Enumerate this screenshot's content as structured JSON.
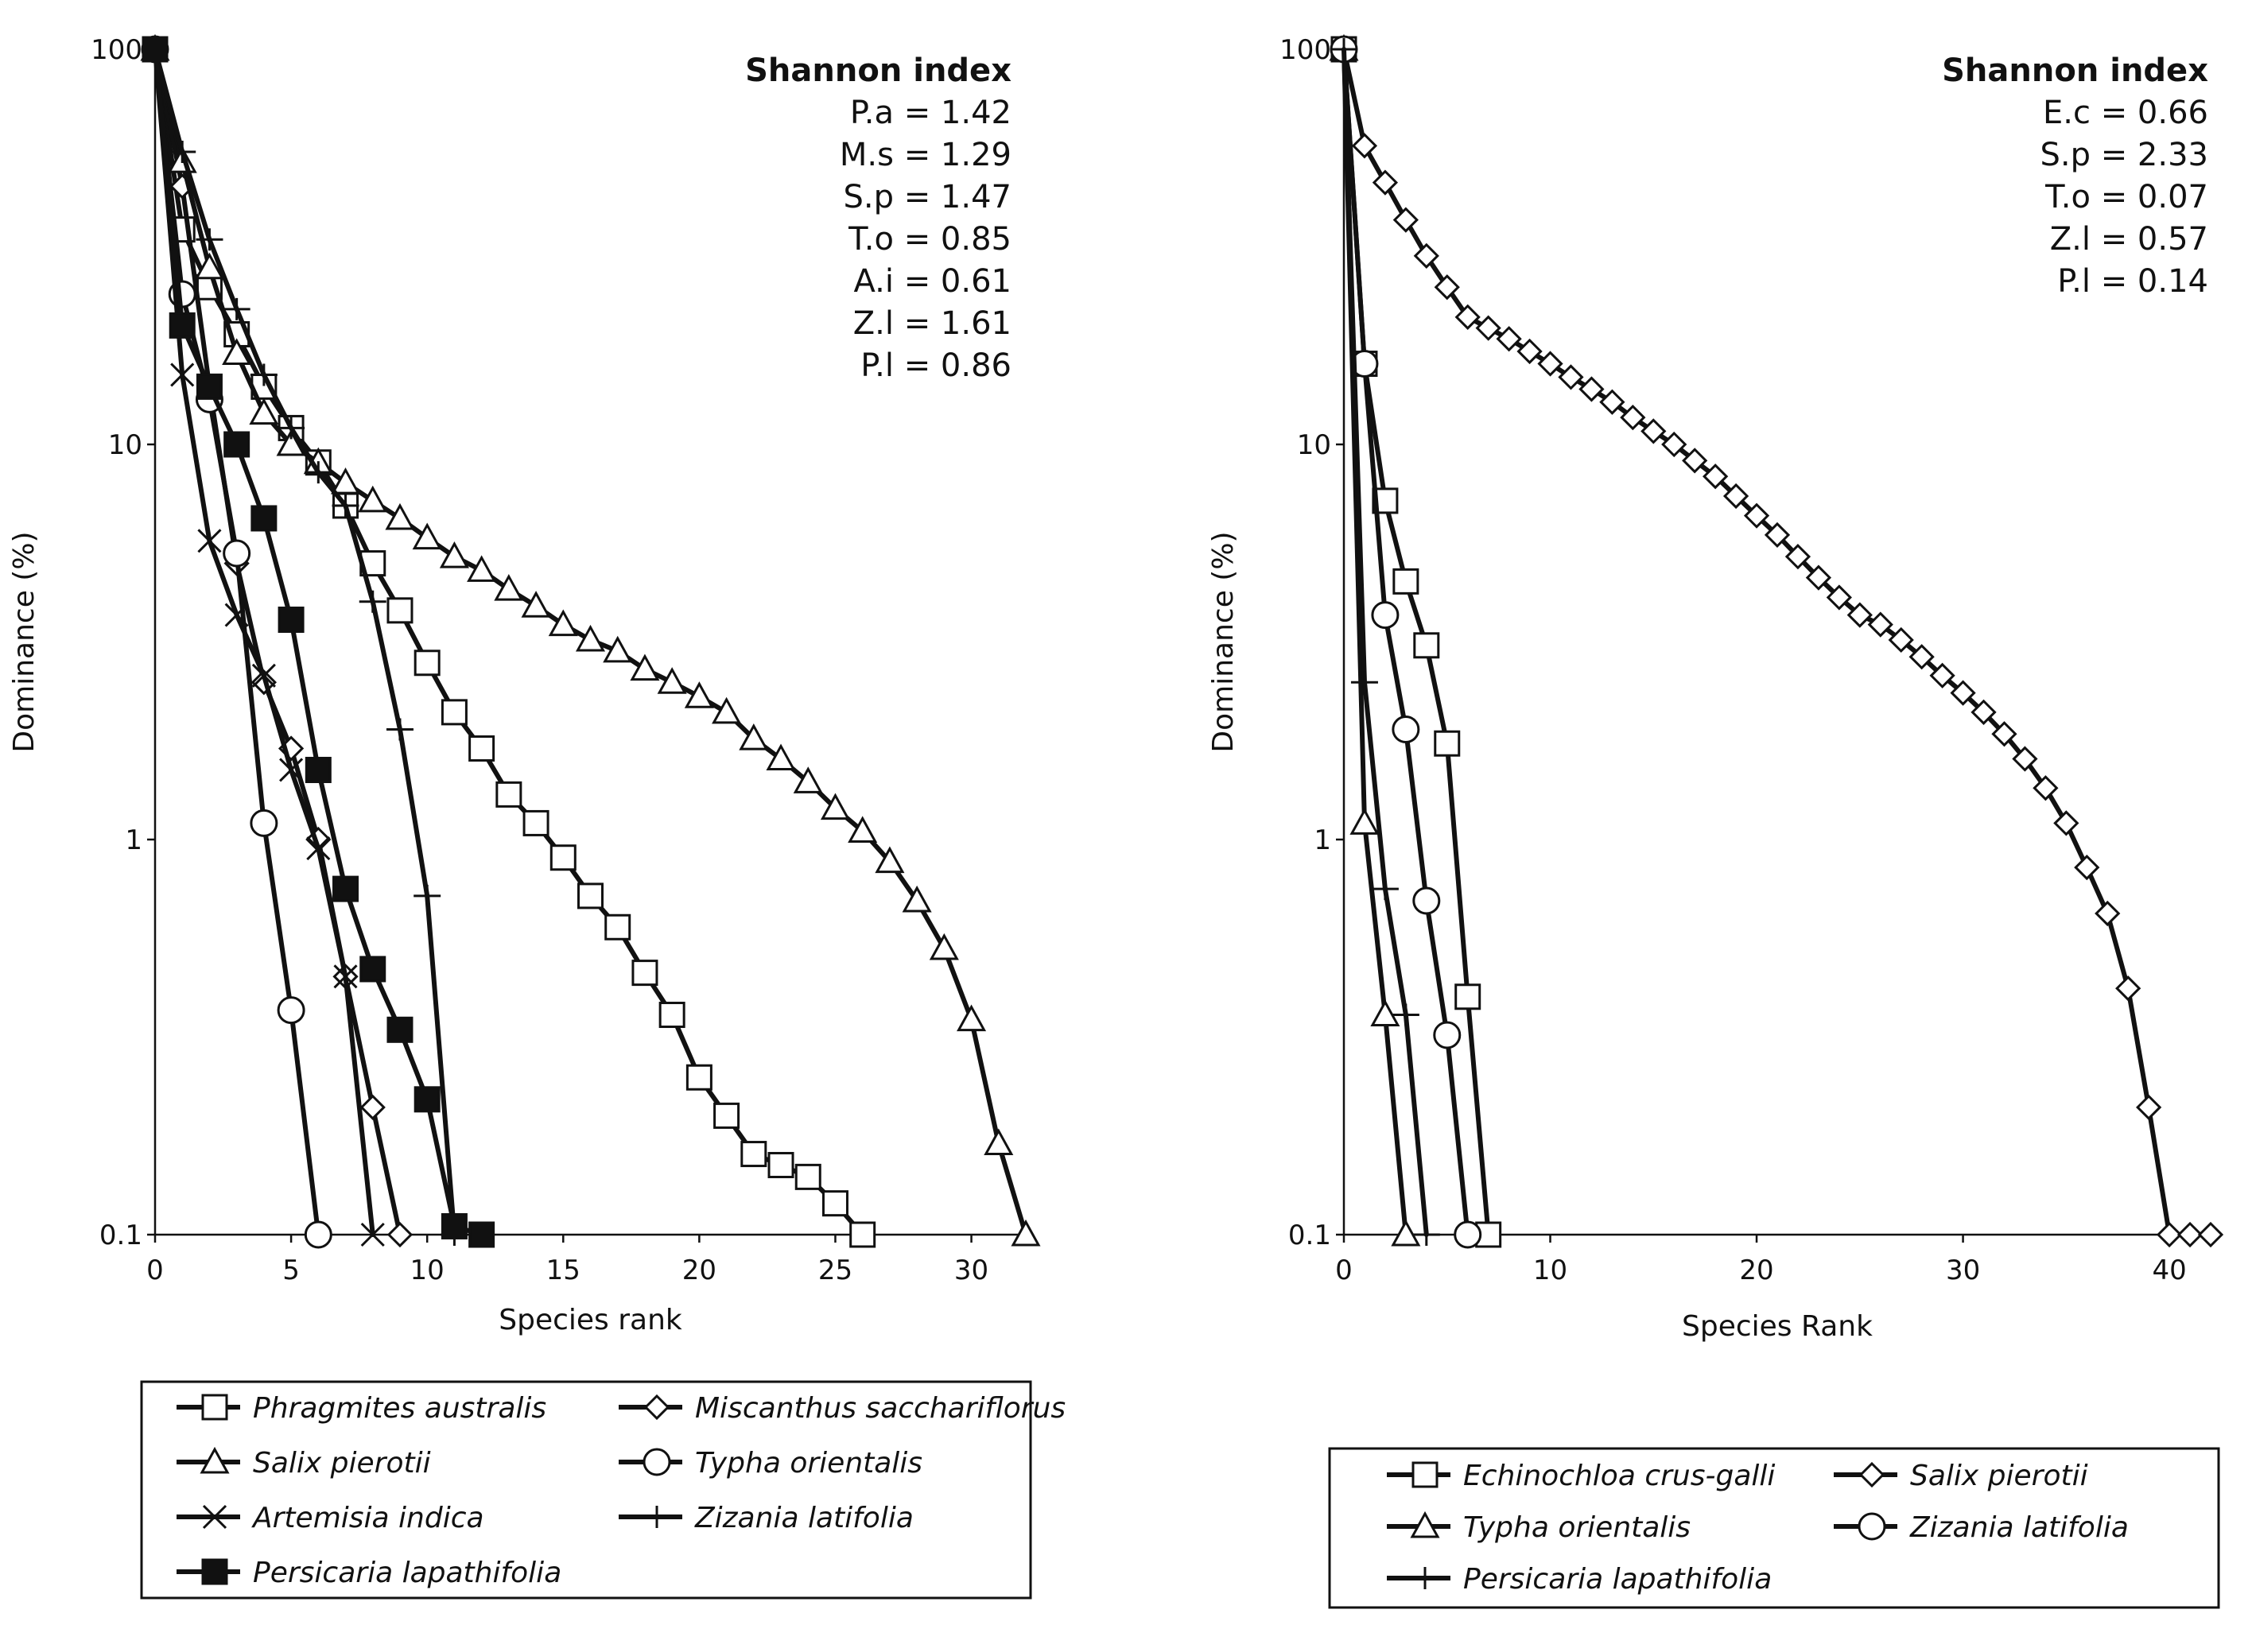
{
  "chart_data": [
    {
      "type": "line",
      "yscale": "log",
      "xlabel": "Species rank",
      "ylabel": "Dominance (%)",
      "xlim": [
        0,
        32
      ],
      "ylim": [
        0.1,
        100
      ],
      "xticks": [
        "0",
        "5",
        "10",
        "15",
        "20",
        "25",
        "30"
      ],
      "yticks": [
        "0.1",
        "1",
        "10",
        "100"
      ],
      "annotation": {
        "title": "Shannon index",
        "entries": [
          "P.a = 1.42",
          "M.s = 1.29",
          "S.p = 1.47",
          "T.o = 0.85",
          "A.i = 0.61",
          "Z.l = 1.61",
          "P.l = 0.86"
        ]
      },
      "series": [
        {
          "name": "Phragmites australis",
          "marker": "square-open",
          "x": [
            0,
            1,
            2,
            3,
            4,
            5,
            6,
            7,
            8,
            9,
            10,
            11,
            12,
            13,
            14,
            15,
            16,
            17,
            18,
            19,
            20,
            21,
            22,
            23,
            24,
            25,
            26
          ],
          "y": [
            100,
            35,
            25,
            19,
            14,
            11,
            9,
            7,
            5,
            3.8,
            2.8,
            2.1,
            1.7,
            1.3,
            1.1,
            0.9,
            0.72,
            0.6,
            0.46,
            0.36,
            0.25,
            0.2,
            0.16,
            0.15,
            0.14,
            0.12,
            0.1
          ]
        },
        {
          "name": "Miscanthus sacchariflorus",
          "marker": "diamond-open",
          "x": [
            0,
            1,
            2,
            3,
            4,
            5,
            6,
            7,
            8,
            9
          ],
          "y": [
            100,
            45,
            14,
            5,
            2.5,
            1.7,
            1.0,
            0.45,
            0.21,
            0.1
          ]
        },
        {
          "name": "Salix pierotii",
          "marker": "triangle-open",
          "x": [
            0,
            1,
            2,
            3,
            4,
            5,
            6,
            7,
            8,
            9,
            10,
            11,
            12,
            13,
            14,
            15,
            16,
            17,
            18,
            19,
            20,
            21,
            22,
            23,
            24,
            25,
            26,
            27,
            28,
            29,
            30,
            31,
            32
          ],
          "y": [
            100,
            52,
            28,
            17,
            12,
            10,
            9,
            8,
            7.2,
            6.5,
            5.8,
            5.2,
            4.8,
            4.3,
            3.9,
            3.5,
            3.2,
            3.0,
            2.7,
            2.5,
            2.3,
            2.1,
            1.8,
            1.6,
            1.4,
            1.2,
            1.05,
            0.88,
            0.7,
            0.53,
            0.35,
            0.17,
            0.1
          ]
        },
        {
          "name": "Typha orientalis",
          "marker": "circle-open",
          "x": [
            0,
            1,
            2,
            3,
            4,
            5,
            6
          ],
          "y": [
            100,
            24,
            13,
            5.3,
            1.1,
            0.37,
            0.1
          ]
        },
        {
          "name": "Artemisia indica",
          "marker": "x",
          "x": [
            0,
            1,
            2,
            3,
            4,
            5,
            6,
            7,
            8
          ],
          "y": [
            100,
            15,
            5.7,
            3.7,
            2.6,
            1.5,
            0.95,
            0.45,
            0.1
          ]
        },
        {
          "name": "Zizania latifolia",
          "marker": "plus",
          "x": [
            0,
            1,
            2,
            3,
            4,
            5,
            6,
            7,
            8,
            9,
            10,
            11
          ],
          "y": [
            100,
            55,
            33,
            22,
            15,
            11,
            8.5,
            7,
            4,
            1.9,
            0.72,
            0.1
          ]
        },
        {
          "name": "Persicaria lapathifolia",
          "marker": "square-filled",
          "x": [
            0,
            1,
            2,
            3,
            4,
            5,
            6,
            7,
            8,
            9,
            10,
            11,
            12
          ],
          "y": [
            100,
            20,
            14,
            10,
            6.5,
            3.6,
            1.5,
            0.75,
            0.47,
            0.33,
            0.22,
            0.105,
            0.1
          ]
        }
      ]
    },
    {
      "type": "line",
      "yscale": "log",
      "xlabel": "Species Rank",
      "ylabel": "Dominance (%)",
      "xlim": [
        0,
        42
      ],
      "ylim": [
        0.1,
        100
      ],
      "xticks": [
        "0",
        "10",
        "20",
        "30",
        "40"
      ],
      "yticks": [
        "0.1",
        "1",
        "10",
        "100"
      ],
      "annotation": {
        "title": "Shannon index",
        "entries": [
          "E.c = 0.66",
          "S.p = 2.33",
          "T.o = 0.07",
          "Z.l = 0.57",
          "P.l = 0.14"
        ]
      },
      "series": [
        {
          "name": "Echinochloa crus-galli",
          "marker": "square-open",
          "x": [
            0,
            1,
            2,
            3,
            4,
            5,
            6,
            7
          ],
          "y": [
            100,
            16,
            7.2,
            4.5,
            3.1,
            1.75,
            0.4,
            0.1
          ]
        },
        {
          "name": "Salix pierotii",
          "marker": "diamond-open",
          "x": [
            0,
            1,
            2,
            3,
            4,
            5,
            6,
            7,
            8,
            9,
            10,
            11,
            12,
            13,
            14,
            15,
            16,
            17,
            18,
            19,
            20,
            21,
            22,
            23,
            24,
            25,
            26,
            27,
            28,
            29,
            30,
            31,
            32,
            33,
            34,
            35,
            36,
            37,
            38,
            39,
            40,
            41,
            42
          ],
          "y": [
            100,
            57,
            46,
            37,
            30,
            25,
            21,
            19.7,
            18.5,
            17.2,
            16,
            14.8,
            13.8,
            12.8,
            11.7,
            10.8,
            10,
            9.1,
            8.3,
            7.4,
            6.6,
            5.9,
            5.2,
            4.6,
            4.1,
            3.7,
            3.5,
            3.2,
            2.9,
            2.6,
            2.35,
            2.1,
            1.85,
            1.6,
            1.35,
            1.1,
            0.85,
            0.65,
            0.42,
            0.21,
            0.1,
            0.1,
            0.1
          ]
        },
        {
          "name": "Typha orientalis",
          "marker": "triangle-open",
          "x": [
            0,
            1,
            2,
            3
          ],
          "y": [
            100,
            1.1,
            0.36,
            0.1
          ]
        },
        {
          "name": "Zizania latifolia",
          "marker": "circle-open",
          "x": [
            0,
            1,
            2,
            3,
            4,
            5,
            6
          ],
          "y": [
            100,
            16,
            3.7,
            1.9,
            0.7,
            0.32,
            0.1
          ]
        },
        {
          "name": "Persicaria lapathifolia",
          "marker": "plus",
          "x": [
            0,
            1,
            2,
            3,
            4
          ],
          "y": [
            100,
            2.5,
            0.75,
            0.36,
            0.1
          ]
        }
      ]
    }
  ]
}
